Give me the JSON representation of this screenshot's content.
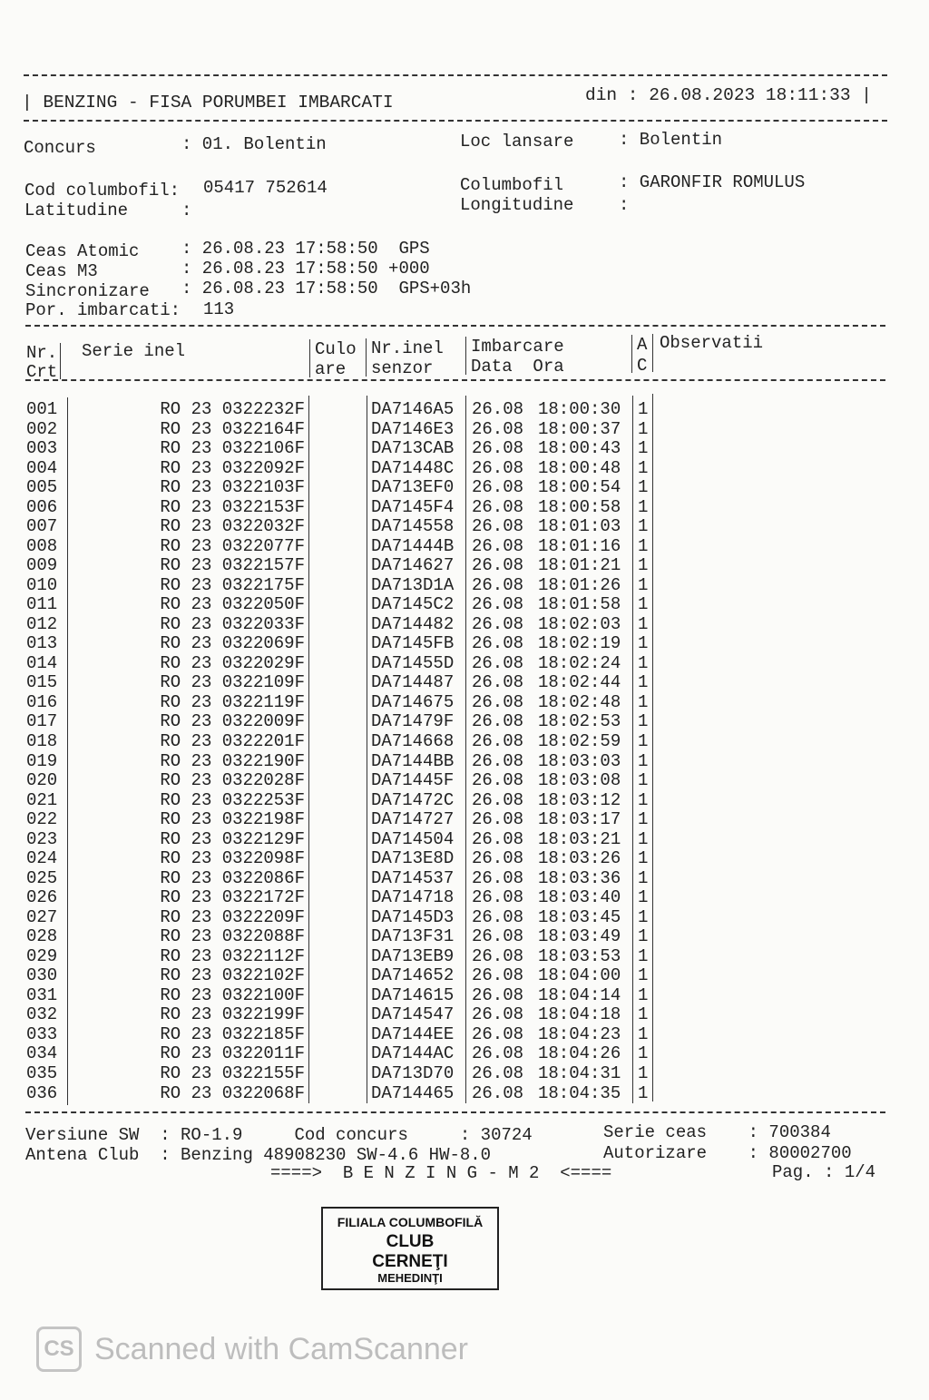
{
  "header": {
    "title": "| BENZING - FISA PORUMBEI IMBARCATI",
    "date": "din : 26.08.2023 18:11:33 |"
  },
  "info": {
    "concurs_label": "Concurs",
    "concurs_value": ": 01. Bolentin",
    "loc_label": "Loc lansare",
    "loc_value": ": Bolentin",
    "cod_label": "Cod columbofil:",
    "cod_value": "05417 752614",
    "columbofil_label": "Columbofil",
    "columbofil_value": ": GARONFIR ROMULUS",
    "lat_label": "Latitudine",
    "lat_value": ":",
    "long_label": "Longitudine",
    "long_value": ":",
    "ceas_atomic_label": "Ceas Atomic",
    "ceas_atomic_value": ": 26.08.23 17:58:50  GPS",
    "ceas_m3_label": "Ceas M3",
    "ceas_m3_value": ": 26.08.23 17:58:50 +000",
    "sincro_label": "Sincronizare",
    "sincro_value": ": 26.08.23 17:58:50  GPS+03h",
    "por_label": "Por. imbarcati:",
    "por_value": "113"
  },
  "table": {
    "headers": {
      "nr1": "Nr.",
      "nr2": "Crt",
      "serie": "Serie inel",
      "culo1": "Culo",
      "culo2": "are",
      "senzor1": "Nr.inel",
      "senzor2": "senzor",
      "imb1": "Imbarcare",
      "imb2": "Data  Ora",
      "ac1": "A",
      "ac2": "C",
      "obs": "Observatii"
    },
    "rows": [
      [
        "001",
        "RO 23 0322232F",
        "DA7146A5",
        "26.08",
        "18:00:30",
        "1"
      ],
      [
        "002",
        "RO 23 0322164F",
        "DA7146E3",
        "26.08",
        "18:00:37",
        "1"
      ],
      [
        "003",
        "RO 23 0322106F",
        "DA713CAB",
        "26.08",
        "18:00:43",
        "1"
      ],
      [
        "004",
        "RO 23 0322092F",
        "DA71448C",
        "26.08",
        "18:00:48",
        "1"
      ],
      [
        "005",
        "RO 23 0322103F",
        "DA713EF0",
        "26.08",
        "18:00:54",
        "1"
      ],
      [
        "006",
        "RO 23 0322153F",
        "DA7145F4",
        "26.08",
        "18:00:58",
        "1"
      ],
      [
        "007",
        "RO 23 0322032F",
        "DA714558",
        "26.08",
        "18:01:03",
        "1"
      ],
      [
        "008",
        "RO 23 0322077F",
        "DA71444B",
        "26.08",
        "18:01:16",
        "1"
      ],
      [
        "009",
        "RO 23 0322157F",
        "DA714627",
        "26.08",
        "18:01:21",
        "1"
      ],
      [
        "010",
        "RO 23 0322175F",
        "DA713D1A",
        "26.08",
        "18:01:26",
        "1"
      ],
      [
        "011",
        "RO 23 0322050F",
        "DA7145C2",
        "26.08",
        "18:01:58",
        "1"
      ],
      [
        "012",
        "RO 23 0322033F",
        "DA714482",
        "26.08",
        "18:02:03",
        "1"
      ],
      [
        "013",
        "RO 23 0322069F",
        "DA7145FB",
        "26.08",
        "18:02:19",
        "1"
      ],
      [
        "014",
        "RO 23 0322029F",
        "DA71455D",
        "26.08",
        "18:02:24",
        "1"
      ],
      [
        "015",
        "RO 23 0322109F",
        "DA714487",
        "26.08",
        "18:02:44",
        "1"
      ],
      [
        "016",
        "RO 23 0322119F",
        "DA714675",
        "26.08",
        "18:02:48",
        "1"
      ],
      [
        "017",
        "RO 23 0322009F",
        "DA71479F",
        "26.08",
        "18:02:53",
        "1"
      ],
      [
        "018",
        "RO 23 0322201F",
        "DA714668",
        "26.08",
        "18:02:59",
        "1"
      ],
      [
        "019",
        "RO 23 0322190F",
        "DA7144BB",
        "26.08",
        "18:03:03",
        "1"
      ],
      [
        "020",
        "RO 23 0322028F",
        "DA71445F",
        "26.08",
        "18:03:08",
        "1"
      ],
      [
        "021",
        "RO 23 0322253F",
        "DA71472C",
        "26.08",
        "18:03:12",
        "1"
      ],
      [
        "022",
        "RO 23 0322198F",
        "DA714727",
        "26.08",
        "18:03:17",
        "1"
      ],
      [
        "023",
        "RO 23 0322129F",
        "DA714504",
        "26.08",
        "18:03:21",
        "1"
      ],
      [
        "024",
        "RO 23 0322098F",
        "DA713E8D",
        "26.08",
        "18:03:26",
        "1"
      ],
      [
        "025",
        "RO 23 0322086F",
        "DA714537",
        "26.08",
        "18:03:36",
        "1"
      ],
      [
        "026",
        "RO 23 0322172F",
        "DA714718",
        "26.08",
        "18:03:40",
        "1"
      ],
      [
        "027",
        "RO 23 0322209F",
        "DA7145D3",
        "26.08",
        "18:03:45",
        "1"
      ],
      [
        "028",
        "RO 23 0322088F",
        "DA713F31",
        "26.08",
        "18:03:49",
        "1"
      ],
      [
        "029",
        "RO 23 0322112F",
        "DA713EB9",
        "26.08",
        "18:03:53",
        "1"
      ],
      [
        "030",
        "RO 23 0322102F",
        "DA714652",
        "26.08",
        "18:04:00",
        "1"
      ],
      [
        "031",
        "RO 23 0322100F",
        "DA714615",
        "26.08",
        "18:04:14",
        "1"
      ],
      [
        "032",
        "RO 23 0322199F",
        "DA714547",
        "26.08",
        "18:04:18",
        "1"
      ],
      [
        "033",
        "RO 23 0322185F",
        "DA7144EE",
        "26.08",
        "18:04:23",
        "1"
      ],
      [
        "034",
        "RO 23 0322011F",
        "DA7144AC",
        "26.08",
        "18:04:26",
        "1"
      ],
      [
        "035",
        "RO 23 0322155F",
        "DA713D70",
        "26.08",
        "18:04:31",
        "1"
      ],
      [
        "036",
        "RO 23 0322068F",
        "DA714465",
        "26.08",
        "18:04:35",
        "1"
      ]
    ]
  },
  "footer": {
    "versiune": "Versiune SW  : RO-1.9     Cod concurs     : 30724",
    "serie_ceas": "Serie ceas    : 700384",
    "antena": "Antena Club  : Benzing 48908230 SW-4.6 HW-8.0",
    "autorizare": "Autorizare    : 80002700",
    "banner": "====>  B E N Z I N G - M 2  <====",
    "page": "Pag. : 1/4"
  },
  "stamp": {
    "line1": "FILIALA COLUMBOFILĂ",
    "line2": "CLUB",
    "line3": "CERNEŢI",
    "line4": "MEHEDINŢI"
  },
  "watermark": {
    "logo": "CS",
    "text": "Scanned with CamScanner"
  }
}
